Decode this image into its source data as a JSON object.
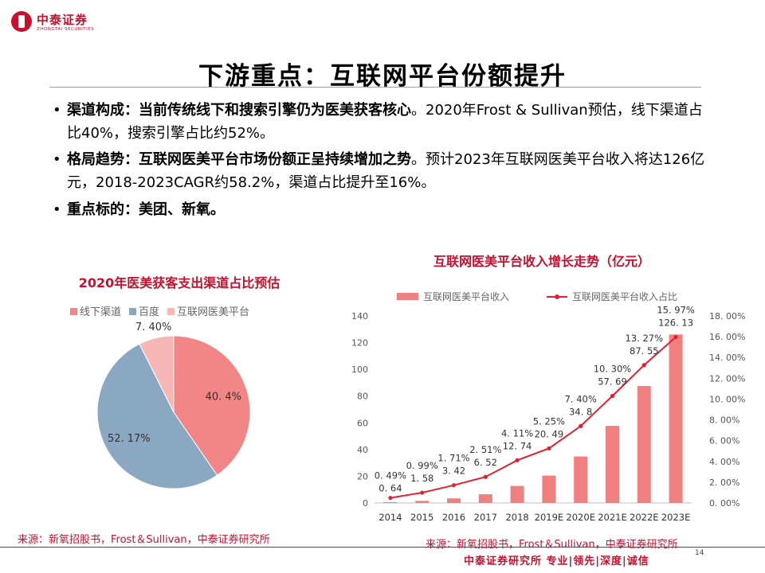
{
  "header": {
    "logo_cn": "中泰证券",
    "logo_en": "ZHONGTAI SECURITIES",
    "title": "下游重点：互联网平台份额提升"
  },
  "bullets": [
    {
      "bold": "渠道构成：当前传统线下和搜索引擎仍为医美获客核心",
      "text": "。2020年Frost & Sullivan预估，线下渠道占比40%，搜索引擎占比约52%。"
    },
    {
      "bold": "格局趋势：互联网医美平台市场份额正呈持续增加之势",
      "text": "。预计2023年互联网医美平台收入将达126亿元，2018-2023CAGR约58.2%，渠道占比提升至16%。"
    },
    {
      "bold": "重点标的：美团、新氧。",
      "text": ""
    }
  ],
  "left_chart": {
    "title": "2020年医美获客支出渠道占比预估",
    "source": "来源：新氧招股书，Frost＆Sullivan，中泰证券研究所"
  },
  "right_chart": {
    "title": "互联网医美平台收入增长走势（亿元）",
    "source": "来源：新氧招股书，Frost＆Sullivan，中泰证券研究所"
  },
  "footer": {
    "text": "中泰证券研究所  专业|领先|深度|诚信",
    "page": "14"
  },
  "colors": {
    "brand": "#c8102e",
    "offline": "#f28585",
    "baidu": "#8aa8c2",
    "internet": "#f7b7b7",
    "bar": "#f08080",
    "line": "#e0212f"
  },
  "chart_data": [
    {
      "type": "pie",
      "title": "2020年医美获客支出渠道占比预估",
      "legend_position": "top",
      "slices": [
        {
          "name": "线下渠道",
          "value": 40.4,
          "label": "40. 4%",
          "color": "#f28585"
        },
        {
          "name": "百度",
          "value": 52.17,
          "label": "52. 17%",
          "color": "#8aa8c2"
        },
        {
          "name": "互联网医美平台",
          "value": 7.4,
          "label": "7. 40%",
          "color": "#f7b7b7"
        }
      ]
    },
    {
      "type": "bar",
      "title": "互联网医美平台收入增长走势（亿元）",
      "legend_position": "top",
      "categories": [
        "2014",
        "2015",
        "2016",
        "2017",
        "2018",
        "2019E",
        "2020E",
        "2021E",
        "2022E",
        "2023E"
      ],
      "ylim": [
        0,
        140
      ],
      "y_ticks": [
        "0",
        "20",
        "40",
        "60",
        "80",
        "100",
        "120",
        "140"
      ],
      "y2lim": [
        0,
        18
      ],
      "y2_ticks": [
        "0. 00%",
        "2. 00%",
        "4. 00%",
        "6. 00%",
        "8. 00%",
        "10. 00%",
        "12. 00%",
        "14. 00%",
        "16. 00%",
        "18. 00%"
      ],
      "series": [
        {
          "name": "互联网医美平台收入",
          "kind": "bar",
          "axis": "left",
          "values": [
            0.64,
            1.58,
            3.42,
            6.52,
            12.74,
            20.49,
            34.8,
            57.69,
            87.55,
            126.13
          ],
          "labels": [
            "0. 64",
            "1. 58",
            "3. 42",
            "6. 52",
            "12. 74",
            "20. 49",
            "34. 8",
            "57. 69",
            "87. 55",
            "126. 13"
          ]
        },
        {
          "name": "互联网医美平台收入占比",
          "kind": "line",
          "axis": "right",
          "values": [
            0.49,
            0.99,
            1.71,
            2.51,
            4.11,
            5.25,
            7.4,
            10.3,
            13.27,
            15.97
          ],
          "labels": [
            "0. 49%",
            "0. 99%",
            "1. 71%",
            "2. 51%",
            "4. 11%",
            "5. 25%",
            "7. 40%",
            "10. 30%",
            "13. 27%",
            "15. 97%"
          ]
        }
      ]
    }
  ]
}
